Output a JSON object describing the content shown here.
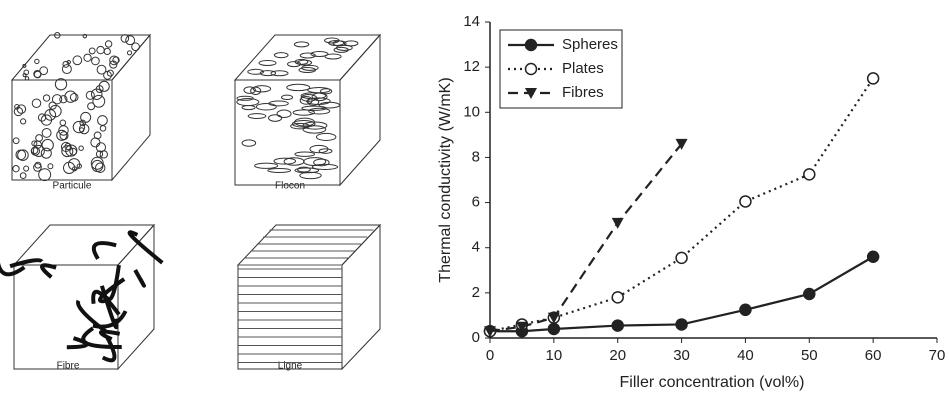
{
  "panels": [
    {
      "label": "Particule"
    },
    {
      "label": "Flocon"
    },
    {
      "label": "Fibre"
    },
    {
      "label": "Ligne"
    }
  ],
  "chart_data": {
    "type": "line",
    "x_label": "Filler concentration (vol%)",
    "y_label": "Thermal conductivity (W/mK)",
    "xlim": [
      0,
      70
    ],
    "xticks": [
      0,
      10,
      20,
      30,
      40,
      50,
      60,
      70
    ],
    "ylim": [
      0,
      14
    ],
    "yticks": [
      0,
      2,
      4,
      6,
      8,
      10,
      12,
      14
    ],
    "grid": false,
    "legend": "upper left",
    "series": [
      {
        "name": "Spheres",
        "color": "#222222",
        "line_style": "solid",
        "marker": "circle-filled",
        "x": [
          0,
          5,
          10,
          20,
          30,
          40,
          50,
          60
        ],
        "values": [
          0.3,
          0.3,
          0.4,
          0.55,
          0.6,
          1.25,
          1.95,
          3.6
        ]
      },
      {
        "name": "Plates",
        "color": "#222222",
        "line_style": "dotted",
        "marker": "circle-open",
        "x": [
          0,
          5,
          10,
          20,
          30,
          40,
          50,
          60
        ],
        "values": [
          0.3,
          0.6,
          0.9,
          1.8,
          3.55,
          6.05,
          7.25,
          11.5
        ]
      },
      {
        "name": "Fibres",
        "color": "#222222",
        "line_style": "dashed",
        "marker": "triangle-down",
        "x": [
          0,
          5,
          10,
          20,
          30
        ],
        "values": [
          0.3,
          0.5,
          0.9,
          5.1,
          8.6
        ]
      }
    ]
  }
}
